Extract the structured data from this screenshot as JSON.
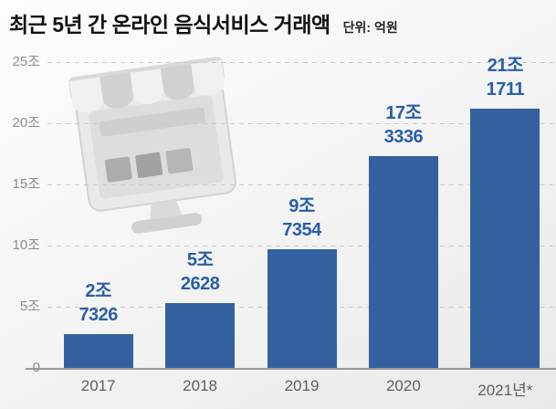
{
  "header": {
    "title": "최근 5년 간 온라인 음식서비스 거래액",
    "unit_label": "단위: 억원"
  },
  "icons": {
    "storefront": "storefront-monitor-icon"
  },
  "chart_data": {
    "type": "bar",
    "title": "최근 5년 간 온라인 음식서비스 거래액",
    "unit": "단위: 억원 (100 million KRW)",
    "categories": [
      "2017",
      "2018",
      "2019",
      "2020",
      "2021년*"
    ],
    "values": [
      27326,
      52628,
      97354,
      173336,
      211711
    ],
    "value_labels": [
      [
        "2조",
        "7326"
      ],
      [
        "5조",
        "2628"
      ],
      [
        "9조",
        "7354"
      ],
      [
        "17조",
        "3336"
      ],
      [
        "21조",
        "1711"
      ]
    ],
    "y_ticks": [
      {
        "label": "25조",
        "value": 250000
      },
      {
        "label": "20조",
        "value": 200000
      },
      {
        "label": "15조",
        "value": 150000
      },
      {
        "label": "10조",
        "value": 100000
      },
      {
        "label": "5조",
        "value": 50000
      },
      {
        "label": "0",
        "value": 0
      }
    ],
    "ylim": [
      0,
      250000
    ],
    "grid": "horizontal-dashed",
    "legend": "none",
    "colors": {
      "bar": "#33609e",
      "value_label": "#2a5ea8",
      "grid_line": "#c9c9c9",
      "axis_line": "#9a9a9a",
      "y_tick_text": "#8d8d8d",
      "x_tick_text": "#5f5f5f",
      "title_text": "#111111"
    }
  }
}
